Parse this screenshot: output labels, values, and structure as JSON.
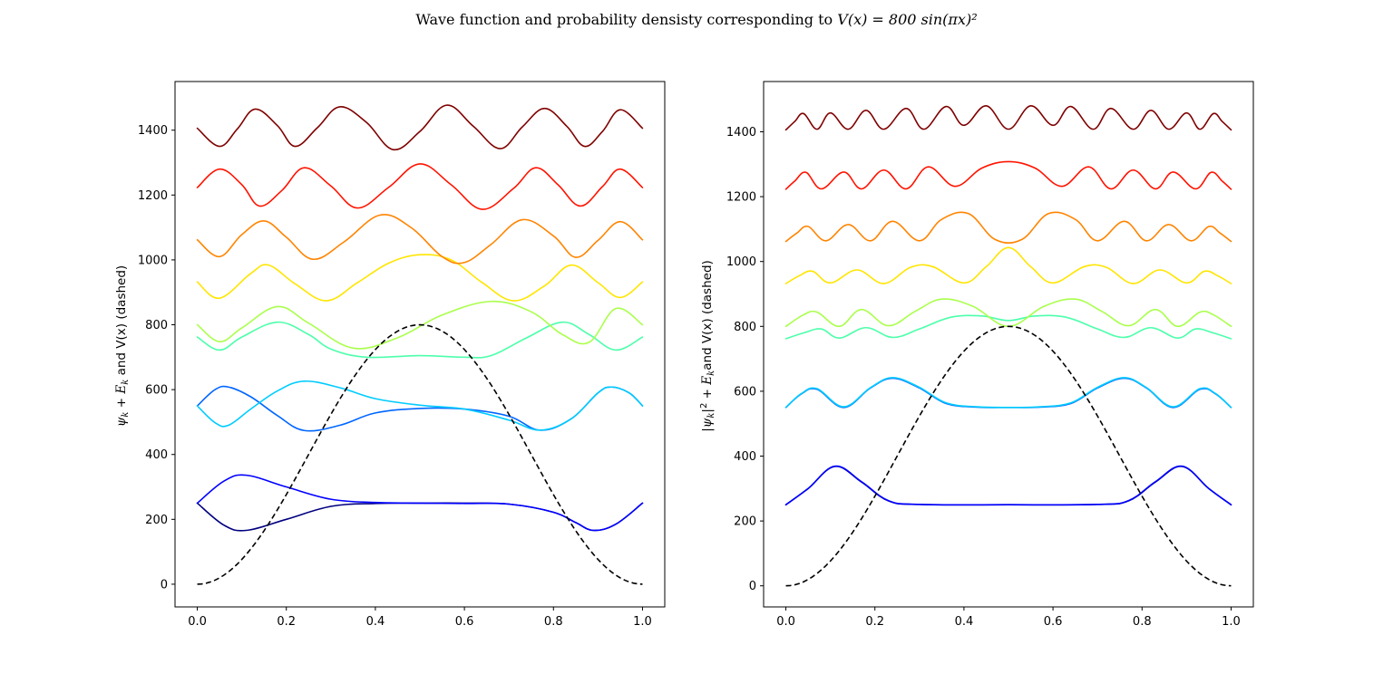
{
  "figure": {
    "title_text": "Wave function and probability densisty corresponding to ",
    "title_math": "V(x) = 800 sin(πx)²"
  },
  "chart_data": [
    {
      "type": "line",
      "panel": "left",
      "ylabel": "ψ_k + E_k and V(x) (dashed)",
      "ylabel_parts": {
        "psi": "ψ",
        "k1": "k",
        "plus": " + ",
        "E": "E",
        "k2": "k",
        "rest": " and V(x) (dashed)"
      },
      "xlim": [
        -0.05,
        1.05
      ],
      "ylim": [
        -70,
        1550
      ],
      "xticks": [
        0.0,
        0.2,
        0.4,
        0.6,
        0.8,
        1.0
      ],
      "xtick_labels": [
        "0.0",
        "0.2",
        "0.4",
        "0.6",
        "0.8",
        "1.0"
      ],
      "yticks": [
        0,
        200,
        400,
        600,
        800,
        1000,
        1200,
        1400
      ],
      "ytick_labels": [
        "0",
        "200",
        "400",
        "600",
        "800",
        "1000",
        "1200",
        "1400"
      ],
      "potential": {
        "amplitude": 800,
        "color": "#000000",
        "style": "dashed"
      },
      "series": [
        {
          "energy": 250,
          "color": "#00007f",
          "x": [
            0,
            0.06,
            0.11,
            0.2,
            0.3,
            0.4,
            0.5,
            0.6,
            0.7,
            0.8,
            0.85,
            0.89,
            0.94,
            1.0
          ],
          "y": [
            250,
            182,
            166,
            200,
            240,
            249,
            250,
            250,
            247,
            222,
            190,
            166,
            185,
            250
          ]
        },
        {
          "energy": 250,
          "color": "#0000ff",
          "x": [
            0,
            0.06,
            0.11,
            0.2,
            0.3,
            0.4,
            0.5,
            0.6,
            0.7,
            0.8,
            0.85,
            0.89,
            0.94,
            1.0
          ],
          "y": [
            250,
            318,
            336,
            300,
            262,
            252,
            250,
            249,
            247,
            222,
            190,
            166,
            185,
            250
          ]
        },
        {
          "energy": 550,
          "color": "#0066ff",
          "x": [
            0,
            0.04,
            0.07,
            0.12,
            0.18,
            0.24,
            0.32,
            0.4,
            0.5,
            0.6,
            0.7,
            0.77,
            0.84,
            0.9,
            0.93,
            0.97,
            1.0
          ],
          "y": [
            550,
            600,
            608,
            578,
            520,
            474,
            490,
            528,
            542,
            540,
            518,
            475,
            510,
            590,
            608,
            590,
            550
          ]
        },
        {
          "energy": 550,
          "color": "#00ccff",
          "x": [
            0,
            0.04,
            0.07,
            0.12,
            0.18,
            0.24,
            0.32,
            0.4,
            0.5,
            0.6,
            0.7,
            0.77,
            0.84,
            0.9,
            0.93,
            0.97,
            1.0
          ],
          "y": [
            550,
            498,
            490,
            540,
            596,
            626,
            606,
            572,
            552,
            540,
            506,
            475,
            510,
            590,
            608,
            590,
            550
          ]
        },
        {
          "energy": 762,
          "color": "#4cffaa",
          "x": [
            0,
            0.05,
            0.1,
            0.18,
            0.25,
            0.3,
            0.38,
            0.5,
            0.6,
            0.66,
            0.74,
            0.82,
            0.88,
            0.94,
            1.0
          ],
          "y": [
            762,
            722,
            762,
            808,
            770,
            725,
            700,
            705,
            700,
            705,
            760,
            808,
            770,
            722,
            762
          ]
        },
        {
          "energy": 800,
          "color": "#aaff4c",
          "x": [
            0,
            0.05,
            0.1,
            0.18,
            0.25,
            0.35,
            0.45,
            0.55,
            0.66,
            0.75,
            0.82,
            0.88,
            0.94,
            1.0
          ],
          "y": [
            800,
            748,
            790,
            856,
            805,
            728,
            760,
            830,
            872,
            840,
            770,
            746,
            850,
            800
          ]
        },
        {
          "energy": 932,
          "color": "#ffe500",
          "x": [
            0,
            0.05,
            0.12,
            0.16,
            0.22,
            0.29,
            0.36,
            0.43,
            0.5,
            0.57,
            0.64,
            0.71,
            0.78,
            0.84,
            0.9,
            0.95,
            1.0
          ],
          "y": [
            932,
            882,
            958,
            984,
            926,
            874,
            930,
            990,
            1016,
            1000,
            930,
            874,
            920,
            984,
            930,
            884,
            932
          ]
        },
        {
          "energy": 1062,
          "color": "#ff8400",
          "x": [
            0,
            0.05,
            0.1,
            0.15,
            0.2,
            0.26,
            0.33,
            0.41,
            0.48,
            0.55,
            0.6,
            0.66,
            0.73,
            0.8,
            0.85,
            0.9,
            0.95,
            1.0
          ],
          "y": [
            1062,
            1010,
            1078,
            1120,
            1070,
            1002,
            1056,
            1138,
            1100,
            1010,
            992,
            1048,
            1124,
            1074,
            1008,
            1060,
            1118,
            1062
          ]
        },
        {
          "energy": 1223,
          "color": "#ff1300",
          "x": [
            0,
            0.05,
            0.1,
            0.14,
            0.19,
            0.24,
            0.3,
            0.36,
            0.43,
            0.5,
            0.57,
            0.64,
            0.71,
            0.76,
            0.81,
            0.86,
            0.91,
            0.95,
            1.0
          ],
          "y": [
            1223,
            1280,
            1232,
            1166,
            1214,
            1284,
            1228,
            1160,
            1224,
            1296,
            1232,
            1156,
            1220,
            1284,
            1232,
            1166,
            1226,
            1280,
            1223
          ]
        },
        {
          "energy": 1406,
          "color": "#7f0000",
          "x": [
            0,
            0.05,
            0.09,
            0.13,
            0.18,
            0.22,
            0.27,
            0.32,
            0.38,
            0.44,
            0.5,
            0.56,
            0.62,
            0.68,
            0.73,
            0.78,
            0.83,
            0.87,
            0.91,
            0.95,
            1.0
          ],
          "y": [
            1406,
            1350,
            1404,
            1465,
            1414,
            1350,
            1408,
            1472,
            1424,
            1340,
            1396,
            1477,
            1412,
            1343,
            1410,
            1467,
            1412,
            1350,
            1396,
            1463,
            1406
          ]
        }
      ]
    },
    {
      "type": "line",
      "panel": "right",
      "ylabel": "|ψ_k|² + E_k and V(x) (dashed)",
      "ylabel_parts": {
        "bar1": "|",
        "psi": "ψ",
        "k1": "k",
        "bar2": "|",
        "sq": "2",
        "plus": " + ",
        "E": "E",
        "k2": "k",
        "rest": "and V(x) (dashed)"
      },
      "xlim": [
        -0.05,
        1.05
      ],
      "ylim": [
        -65,
        1555
      ],
      "xticks": [
        0.0,
        0.2,
        0.4,
        0.6,
        0.8,
        1.0
      ],
      "xtick_labels": [
        "0.0",
        "0.2",
        "0.4",
        "0.6",
        "0.8",
        "1.0"
      ],
      "yticks": [
        0,
        200,
        400,
        600,
        800,
        1000,
        1200,
        1400
      ],
      "ytick_labels": [
        "0",
        "200",
        "400",
        "600",
        "800",
        "1000",
        "1200",
        "1400"
      ],
      "potential": {
        "amplitude": 800,
        "color": "#000000",
        "style": "dashed"
      },
      "series": [
        {
          "energy": 250,
          "color": "#00007f",
          "x": [
            0,
            0.05,
            0.11,
            0.17,
            0.23,
            0.3,
            0.5,
            0.7,
            0.77,
            0.83,
            0.89,
            0.95,
            1.0
          ],
          "y": [
            250,
            300,
            368,
            320,
            262,
            251,
            250,
            251,
            262,
            320,
            368,
            300,
            250
          ]
        },
        {
          "energy": 250,
          "color": "#0000ff",
          "x": [
            0,
            0.05,
            0.11,
            0.17,
            0.23,
            0.3,
            0.5,
            0.7,
            0.77,
            0.83,
            0.89,
            0.95,
            1.0
          ],
          "y": [
            250,
            300,
            369,
            321,
            263,
            251,
            250,
            251,
            263,
            321,
            369,
            300,
            250
          ]
        },
        {
          "energy": 550,
          "color": "#0066ff",
          "x": [
            0,
            0.035,
            0.07,
            0.13,
            0.19,
            0.24,
            0.3,
            0.36,
            0.43,
            0.5,
            0.57,
            0.64,
            0.7,
            0.76,
            0.81,
            0.87,
            0.93,
            0.965,
            1.0
          ],
          "y": [
            550,
            592,
            606,
            550,
            610,
            640,
            610,
            562,
            551,
            550,
            551,
            562,
            610,
            640,
            610,
            550,
            606,
            592,
            550
          ]
        },
        {
          "energy": 550,
          "color": "#00ccff",
          "x": [
            0,
            0.035,
            0.07,
            0.13,
            0.19,
            0.24,
            0.3,
            0.36,
            0.43,
            0.5,
            0.57,
            0.64,
            0.7,
            0.76,
            0.81,
            0.87,
            0.93,
            0.965,
            1.0
          ],
          "y": [
            550,
            593,
            608,
            552,
            611,
            642,
            612,
            564,
            552,
            550,
            552,
            564,
            612,
            642,
            611,
            552,
            608,
            593,
            550
          ]
        },
        {
          "energy": 762,
          "color": "#4cffaa",
          "x": [
            0,
            0.04,
            0.08,
            0.12,
            0.18,
            0.24,
            0.3,
            0.37,
            0.44,
            0.5,
            0.56,
            0.63,
            0.7,
            0.76,
            0.82,
            0.88,
            0.92,
            0.96,
            1.0
          ],
          "y": [
            762,
            780,
            792,
            764,
            796,
            766,
            792,
            828,
            832,
            818,
            832,
            828,
            792,
            766,
            796,
            764,
            792,
            780,
            762
          ]
        },
        {
          "energy": 800,
          "color": "#aaff4c",
          "x": [
            0,
            0.04,
            0.07,
            0.12,
            0.17,
            0.23,
            0.29,
            0.35,
            0.42,
            0.5,
            0.58,
            0.65,
            0.71,
            0.77,
            0.83,
            0.88,
            0.93,
            0.96,
            1.0
          ],
          "y": [
            800,
            836,
            844,
            800,
            852,
            802,
            846,
            884,
            862,
            800,
            862,
            884,
            846,
            802,
            852,
            800,
            844,
            836,
            800
          ]
        },
        {
          "energy": 932,
          "color": "#ffe500",
          "x": [
            0,
            0.03,
            0.06,
            0.1,
            0.16,
            0.22,
            0.28,
            0.33,
            0.4,
            0.45,
            0.5,
            0.55,
            0.6,
            0.67,
            0.72,
            0.78,
            0.84,
            0.9,
            0.94,
            0.97,
            1.0
          ],
          "y": [
            932,
            956,
            970,
            934,
            974,
            932,
            982,
            984,
            934,
            984,
            1043,
            984,
            934,
            984,
            982,
            932,
            974,
            934,
            970,
            956,
            932
          ]
        },
        {
          "energy": 1062,
          "color": "#ff8400",
          "x": [
            0,
            0.025,
            0.05,
            0.09,
            0.14,
            0.19,
            0.24,
            0.3,
            0.35,
            0.41,
            0.47,
            0.53,
            0.59,
            0.65,
            0.7,
            0.76,
            0.81,
            0.86,
            0.91,
            0.95,
            0.975,
            1.0
          ],
          "y": [
            1062,
            1088,
            1108,
            1064,
            1114,
            1064,
            1124,
            1064,
            1130,
            1148,
            1068,
            1068,
            1148,
            1130,
            1064,
            1124,
            1064,
            1114,
            1064,
            1108,
            1088,
            1062
          ]
        },
        {
          "energy": 1223,
          "color": "#ff1300",
          "x": [
            0,
            0.02,
            0.045,
            0.08,
            0.13,
            0.17,
            0.22,
            0.27,
            0.32,
            0.38,
            0.44,
            0.5,
            0.56,
            0.62,
            0.68,
            0.73,
            0.78,
            0.83,
            0.87,
            0.92,
            0.955,
            0.98,
            1.0
          ],
          "y": [
            1223,
            1248,
            1275,
            1224,
            1276,
            1224,
            1282,
            1224,
            1292,
            1232,
            1288,
            1308,
            1288,
            1232,
            1292,
            1224,
            1282,
            1224,
            1276,
            1224,
            1275,
            1248,
            1223
          ]
        },
        {
          "energy": 1406,
          "color": "#7f0000",
          "x": [
            0,
            0.02,
            0.04,
            0.07,
            0.1,
            0.14,
            0.18,
            0.22,
            0.27,
            0.31,
            0.36,
            0.4,
            0.45,
            0.5,
            0.55,
            0.6,
            0.64,
            0.69,
            0.73,
            0.78,
            0.82,
            0.86,
            0.9,
            0.93,
            0.96,
            0.98,
            1.0
          ],
          "y": [
            1406,
            1432,
            1456,
            1408,
            1458,
            1408,
            1466,
            1408,
            1472,
            1408,
            1478,
            1420,
            1480,
            1408,
            1480,
            1420,
            1478,
            1408,
            1472,
            1408,
            1466,
            1408,
            1458,
            1408,
            1456,
            1432,
            1406
          ]
        }
      ]
    }
  ]
}
